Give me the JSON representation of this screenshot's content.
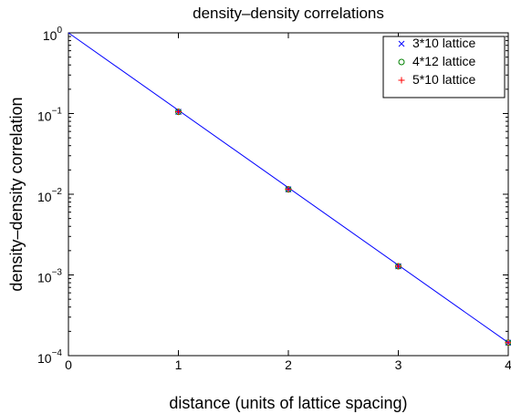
{
  "chart_data": {
    "type": "scatter",
    "title": "density–density correlations",
    "xlabel": "distance (units of lattice spacing)",
    "ylabel": "density–density correlation",
    "xlim": [
      0,
      4
    ],
    "ylim": [
      0.0001,
      1
    ],
    "yscale": "log",
    "x_ticks": [
      0,
      1,
      2,
      3,
      4
    ],
    "y_ticks": [
      {
        "value": 1,
        "base": "10",
        "exp": "0"
      },
      {
        "value": 0.1,
        "base": "10",
        "exp": "−1"
      },
      {
        "value": 0.01,
        "base": "10",
        "exp": "−2"
      },
      {
        "value": 0.001,
        "base": "10",
        "exp": "−3"
      },
      {
        "value": 0.0001,
        "base": "10",
        "exp": "−4"
      }
    ],
    "grid": false,
    "legend_position": "top-right",
    "series": [
      {
        "name": "3*10 lattice",
        "marker": "x",
        "color": "#0000ff",
        "x": [
          1,
          2,
          3,
          4
        ],
        "y": [
          0.105,
          0.0115,
          0.00128,
          0.000145
        ]
      },
      {
        "name": "4*12 lattice",
        "marker": "o",
        "color": "#008000",
        "x": [
          1,
          2,
          3,
          4
        ],
        "y": [
          0.105,
          0.0115,
          0.00128,
          0.000145
        ]
      },
      {
        "name": "5*10 lattice",
        "marker": "+",
        "color": "#ff0000",
        "x": [
          1,
          2,
          3,
          4
        ],
        "y": [
          0.105,
          0.0115,
          0.00128,
          0.000145
        ]
      }
    ],
    "fit_line": {
      "color": "#0000ff",
      "x": [
        0,
        4
      ],
      "y": [
        1,
        0.000145
      ]
    }
  }
}
